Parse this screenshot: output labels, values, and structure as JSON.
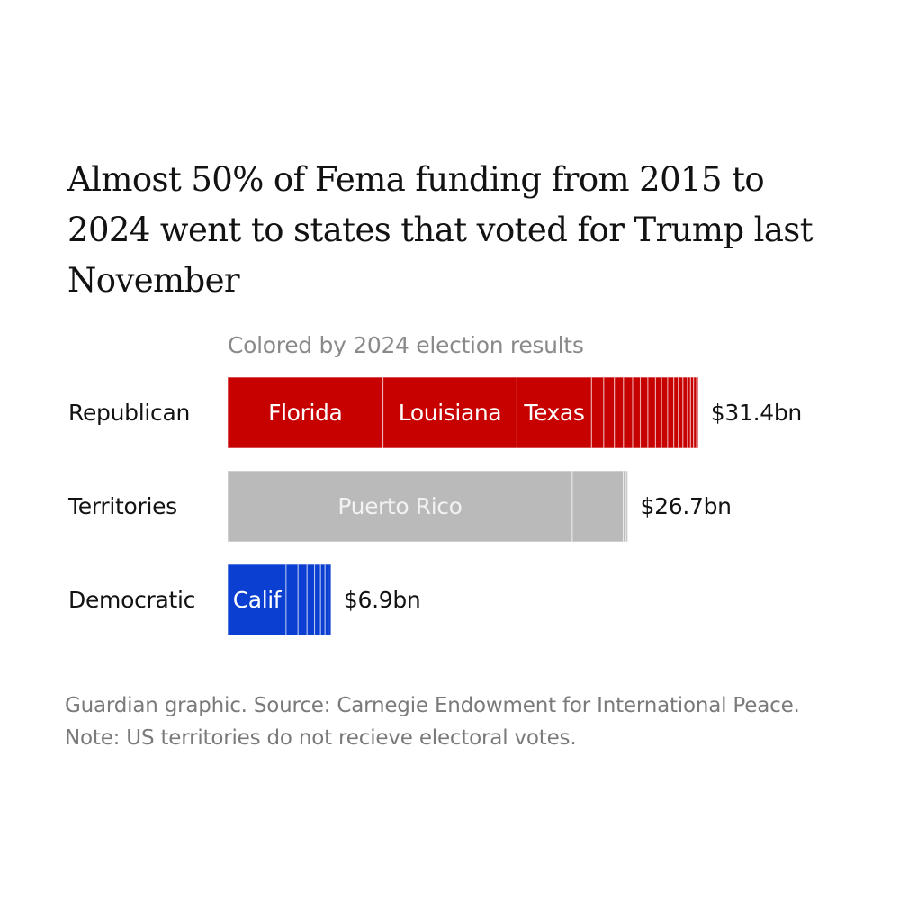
{
  "chart_data": {
    "type": "bar",
    "orientation": "horizontal",
    "stacked": true,
    "title": "Almost 50% of Fema funding from 2015 to 2024 went to states that voted for Trump last November",
    "subtitle": "Colored by 2024 election results",
    "categories": [
      "Republican",
      "Territories",
      "Democratic"
    ],
    "totals": [
      31.4,
      26.7,
      6.9
    ],
    "total_labels": [
      "$31.4bn",
      "$26.7bn",
      "$6.9bn"
    ],
    "unit": "$bn",
    "colors": {
      "Republican": "#c70000",
      "Territories": "#bababa",
      "Democratic": "#0a3fd1"
    },
    "segment_labels": {
      "Republican": [
        "Florida",
        "Louisiana",
        "Texas"
      ],
      "Territories": [
        "Puerto Rico"
      ],
      "Democratic": [
        "Calif"
      ]
    },
    "segments": {
      "Republican": [
        10.2,
        8.8,
        4.9,
        0.8,
        0.7,
        0.6,
        0.6,
        0.5,
        0.5,
        0.5,
        0.4,
        0.4,
        0.4,
        0.3,
        0.3,
        0.3,
        0.2,
        0.2,
        0.2,
        0.1
      ],
      "Territories": [
        23.0,
        3.4,
        0.2,
        0.1
      ],
      "Democratic": [
        3.9,
        0.8,
        0.6,
        0.5,
        0.4,
        0.3,
        0.2,
        0.2
      ]
    },
    "grid": false,
    "legend": "none"
  },
  "footer": "Guardian graphic. Source: Carnegie Endowment for International Peace. Note: US territories do not recieve electoral votes."
}
